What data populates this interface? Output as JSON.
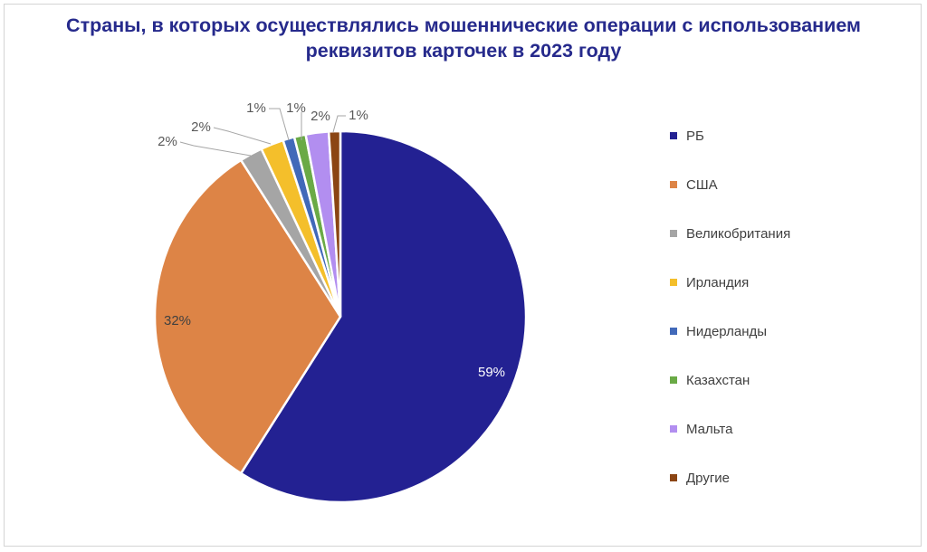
{
  "title_line1": "Страны, в которых осуществлялись мошеннические операции с использованием",
  "title_line2": "реквизитов карточек в 2023 году",
  "chart_data": {
    "type": "pie",
    "title": "Страны, в которых осуществлялись мошеннические операции с использованием реквизитов карточек в 2023 году",
    "legend_position": "right",
    "slices": [
      {
        "label": "РБ",
        "value": 59,
        "display": "59%",
        "color": "#232192"
      },
      {
        "label": "США",
        "value": 32,
        "display": "32%",
        "color": "#dd8446"
      },
      {
        "label": "Великобритания",
        "value": 2,
        "display": "2%",
        "color": "#a5a5a5"
      },
      {
        "label": "Ирландия",
        "value": 2,
        "display": "2%",
        "color": "#f4bf2b"
      },
      {
        "label": "Нидерланды",
        "value": 1,
        "display": "1%",
        "color": "#4169b9"
      },
      {
        "label": "Казахстан",
        "value": 1,
        "display": "1%",
        "color": "#6aaa46"
      },
      {
        "label": "Мальта",
        "value": 2,
        "display": "2%",
        "color": "#b28ef0"
      },
      {
        "label": "Другие",
        "value": 1,
        "display": "1%",
        "color": "#8b4513"
      }
    ]
  }
}
